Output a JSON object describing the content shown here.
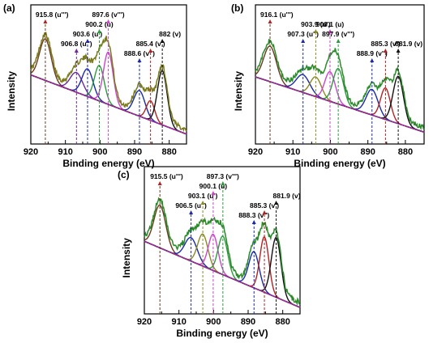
{
  "chart_data": [
    {
      "type": "line",
      "panel_label": "(a)",
      "xlabel": "Binding energy (eV)",
      "ylabel": "Intensity",
      "xlim": [
        920,
        875
      ],
      "x_ticks": [
        920,
        910,
        900,
        890,
        880
      ],
      "x_tick_labels": [
        "920",
        "910",
        "900",
        "890",
        "880"
      ],
      "measured_color": "#7b7b1e",
      "baseline": [
        [
          920,
          0.7
        ],
        [
          875,
          0.1
        ]
      ],
      "peaks": [
        {
          "label": "915.8 (u''')",
          "x": 915.8,
          "height": 0.42,
          "width": 1.7,
          "color": "#6b3a1e",
          "tip": "#b22222"
        },
        {
          "label": "906.8 (u'')",
          "x": 906.8,
          "height": 0.2,
          "width": 1.8,
          "color": "#6a2a9c",
          "tip": "#6a2a9c"
        },
        {
          "label": "903.6 (u')",
          "x": 903.6,
          "height": 0.28,
          "width": 1.6,
          "color": "#1a2aa8",
          "tip": "#1a2aa8"
        },
        {
          "label": "900.2 (u)",
          "x": 900.2,
          "height": 0.36,
          "width": 1.4,
          "color": "#2a9c3a",
          "tip": "#2a9c3a"
        },
        {
          "label": "897.6 (v''')",
          "x": 897.6,
          "height": 0.53,
          "width": 1.4,
          "color": "#cc44cc",
          "tip": "#cc44cc"
        },
        {
          "label": "888.6 (v'')",
          "x": 888.6,
          "height": 0.26,
          "width": 1.6,
          "color": "#1a2aa8",
          "tip": "#1a2aa8"
        },
        {
          "label": "885.4 (v')",
          "x": 885.4,
          "height": 0.2,
          "width": 1.2,
          "color": "#b22222",
          "tip": "#b22222"
        },
        {
          "label": "882 (v)",
          "x": 882.0,
          "height": 0.55,
          "width": 1.4,
          "color": "#111111",
          "tip": "#111111"
        }
      ]
    },
    {
      "type": "line",
      "panel_label": "(b)",
      "xlabel": "Binding energy (eV)",
      "ylabel": "Intensity",
      "xlim": [
        920,
        875
      ],
      "x_ticks": [
        920,
        910,
        900,
        890,
        880
      ],
      "x_tick_labels": [
        "920",
        "910",
        "900",
        "890",
        "880"
      ],
      "measured_color": "#2a8a2a",
      "baseline": [
        [
          920,
          0.68
        ],
        [
          875,
          0.12
        ]
      ],
      "peaks": [
        {
          "label": "916.1 (u''')",
          "x": 916.1,
          "height": 0.36,
          "width": 1.7,
          "color": "#6b3a1e",
          "tip": "#b22222"
        },
        {
          "label": "907.3 (u'')",
          "x": 907.3,
          "height": 0.18,
          "width": 1.8,
          "color": "#1a2aa8",
          "tip": "#1a2aa8"
        },
        {
          "label": "903.9 (u')",
          "x": 903.9,
          "height": 0.2,
          "width": 1.5,
          "color": "#8a8a20",
          "tip": "#8a8a20"
        },
        {
          "label": "900.1 (u)",
          "x": 900.1,
          "height": 0.3,
          "width": 1.4,
          "color": "#cc44cc",
          "tip": "#cc44cc"
        },
        {
          "label": "897.9 (v''')",
          "x": 897.9,
          "height": 0.36,
          "width": 1.4,
          "color": "#2a9c3a",
          "tip": "#2a9c3a"
        },
        {
          "label": "888.9 (v'')",
          "x": 888.9,
          "height": 0.26,
          "width": 1.6,
          "color": "#1a2aa8",
          "tip": "#1a2aa8"
        },
        {
          "label": "885.3 (v')",
          "x": 885.3,
          "height": 0.32,
          "width": 1.3,
          "color": "#b22222",
          "tip": "#b22222"
        },
        {
          "label": "881.9 (v)",
          "x": 881.9,
          "height": 0.48,
          "width": 1.4,
          "color": "#111111",
          "tip": "#111111"
        }
      ]
    },
    {
      "type": "line",
      "panel_label": "(c)",
      "xlabel": "Binding energy (eV)",
      "ylabel": "Intensity",
      "xlim": [
        920,
        875
      ],
      "x_ticks": [
        920,
        910,
        900,
        890,
        880
      ],
      "x_tick_labels": [
        "920",
        "910",
        "900",
        "890",
        "880"
      ],
      "measured_color": "#2a8a2a",
      "baseline": [
        [
          920,
          0.68
        ],
        [
          875,
          0.06
        ]
      ],
      "peaks": [
        {
          "label": "915.5 (u''')",
          "x": 915.5,
          "height": 0.4,
          "width": 1.7,
          "color": "#6b3a1e",
          "tip": "#b22222"
        },
        {
          "label": "906.5 (u'')",
          "x": 906.5,
          "height": 0.22,
          "width": 1.8,
          "color": "#1a2aa8",
          "tip": "#1a2aa8"
        },
        {
          "label": "903.1 (u')",
          "x": 903.1,
          "height": 0.3,
          "width": 1.5,
          "color": "#8a8a20",
          "tip": "#8a8a20"
        },
        {
          "label": "900.1 (u)",
          "x": 900.1,
          "height": 0.34,
          "width": 1.4,
          "color": "#cc44cc",
          "tip": "#cc44cc"
        },
        {
          "label": "897.3 (v''')",
          "x": 897.3,
          "height": 0.36,
          "width": 1.4,
          "color": "#2a9c3a",
          "tip": "#2a9c3a"
        },
        {
          "label": "888.3 (v'')",
          "x": 888.3,
          "height": 0.34,
          "width": 1.5,
          "color": "#1a2aa8",
          "tip": "#1a2aa8"
        },
        {
          "label": "885.3 (v')",
          "x": 885.3,
          "height": 0.52,
          "width": 1.3,
          "color": "#b22222",
          "tip": "#b22222"
        },
        {
          "label": "881.9 (v)",
          "x": 881.9,
          "height": 0.56,
          "width": 1.4,
          "color": "#111111",
          "tip": "#111111"
        }
      ]
    }
  ]
}
